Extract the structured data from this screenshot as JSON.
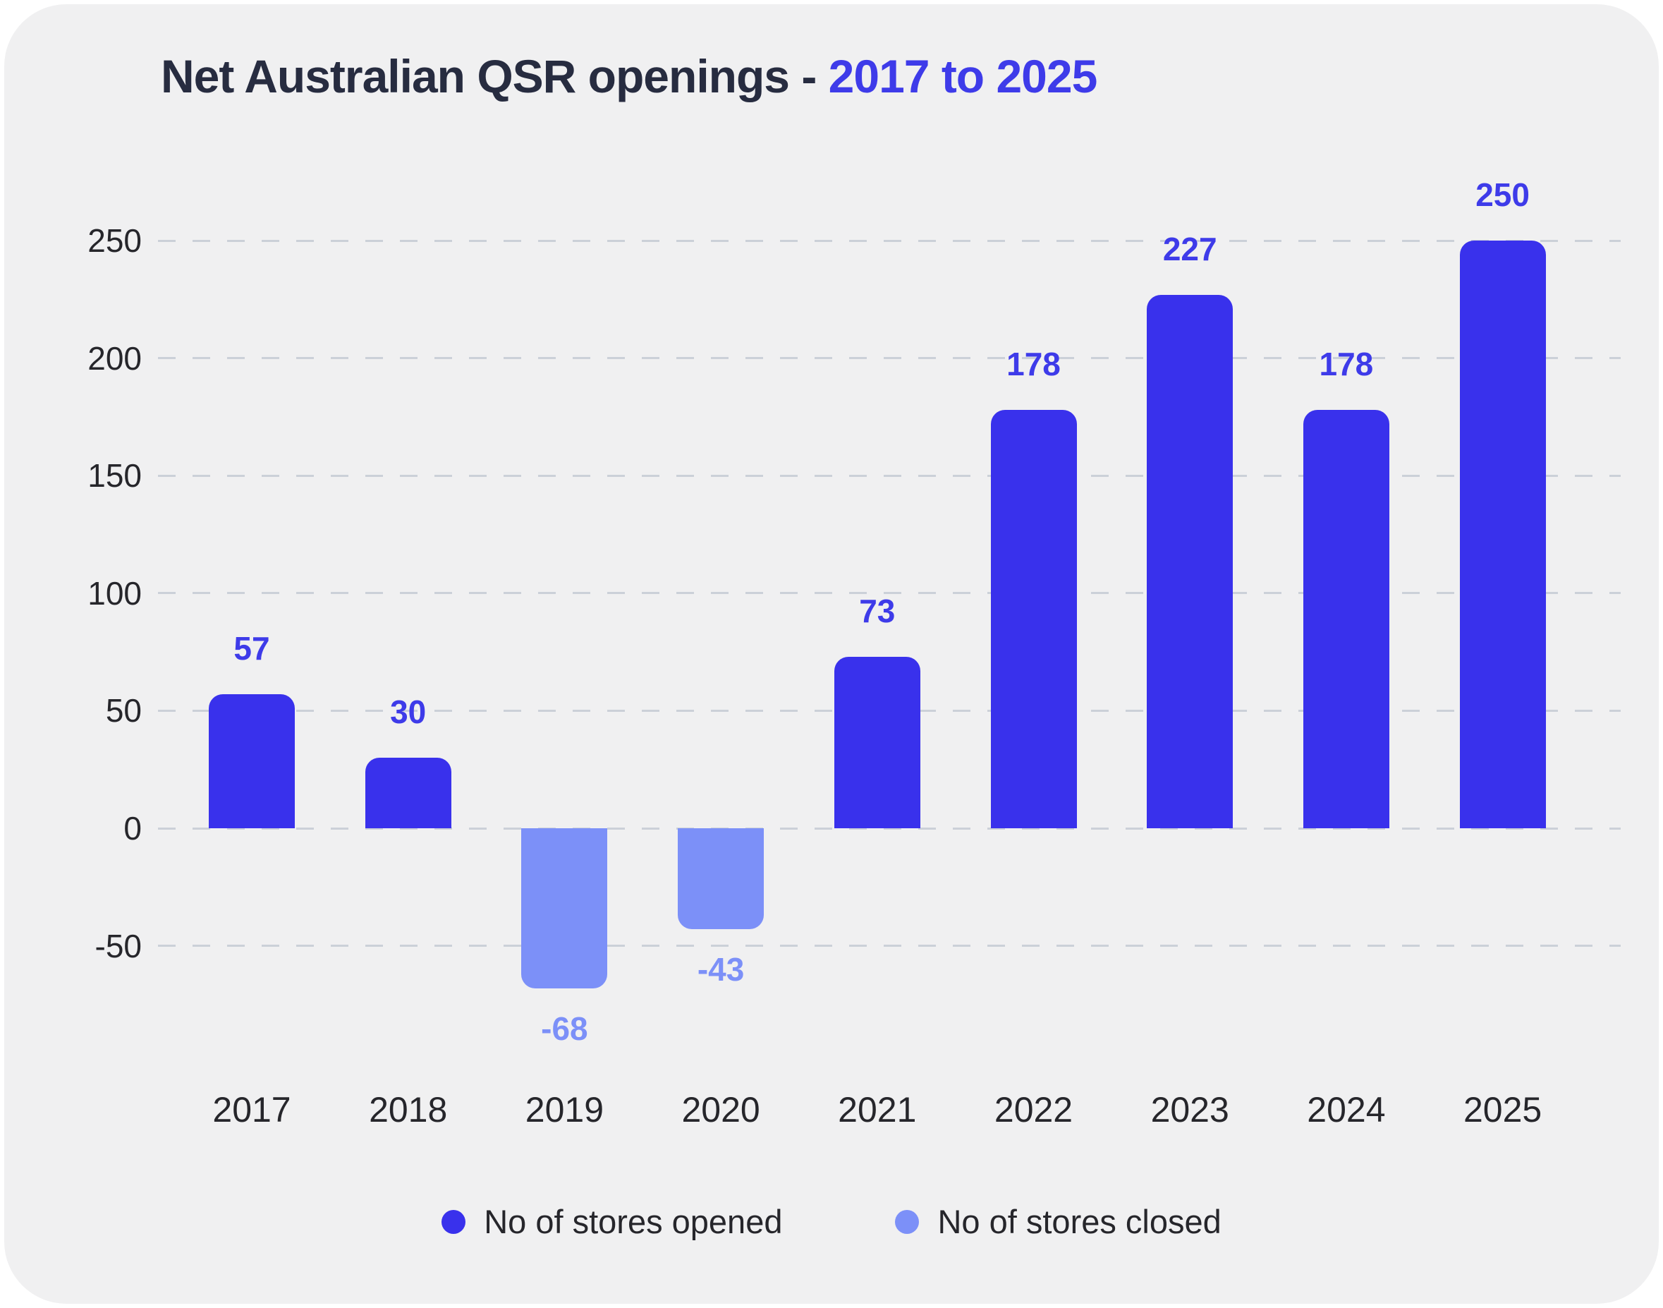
{
  "title": {
    "main": "Net Australian QSR openings - ",
    "accent": "2017 to 2025"
  },
  "chart_data": {
    "type": "bar",
    "title": "Net Australian QSR openings - 2017 to 2025",
    "categories": [
      "2017",
      "2018",
      "2019",
      "2020",
      "2021",
      "2022",
      "2023",
      "2024",
      "2025"
    ],
    "values": [
      57,
      30,
      -68,
      -43,
      73,
      178,
      227,
      178,
      250
    ],
    "data_labels": [
      "57",
      "30",
      "-68",
      "-43",
      "73",
      "178",
      "227",
      "178",
      "250"
    ],
    "xlabel": "",
    "ylabel": "",
    "y_ticks": [
      250,
      200,
      150,
      100,
      50,
      0,
      -50
    ],
    "ylim": [
      -90,
      280
    ],
    "grid": "horizontal-dashed",
    "legend_position": "bottom-center",
    "legend": [
      {
        "label": "No of stores opened",
        "color": "#3931EC"
      },
      {
        "label": "No of stores closed",
        "color": "#7C90F8"
      }
    ]
  },
  "colors": {
    "page_background": "#FFFFFF",
    "card_background": "#F0F0F1",
    "bar_positive": "#3931EC",
    "bar_negative": "#7C90F8",
    "value_label_positive": "#3E3BE9",
    "value_label_negative": "#7C90F8",
    "title_text": "#272C40",
    "title_accent": "#3E3BE9",
    "axis_text": "#26262B",
    "gridline": "#CBD0D8"
  }
}
